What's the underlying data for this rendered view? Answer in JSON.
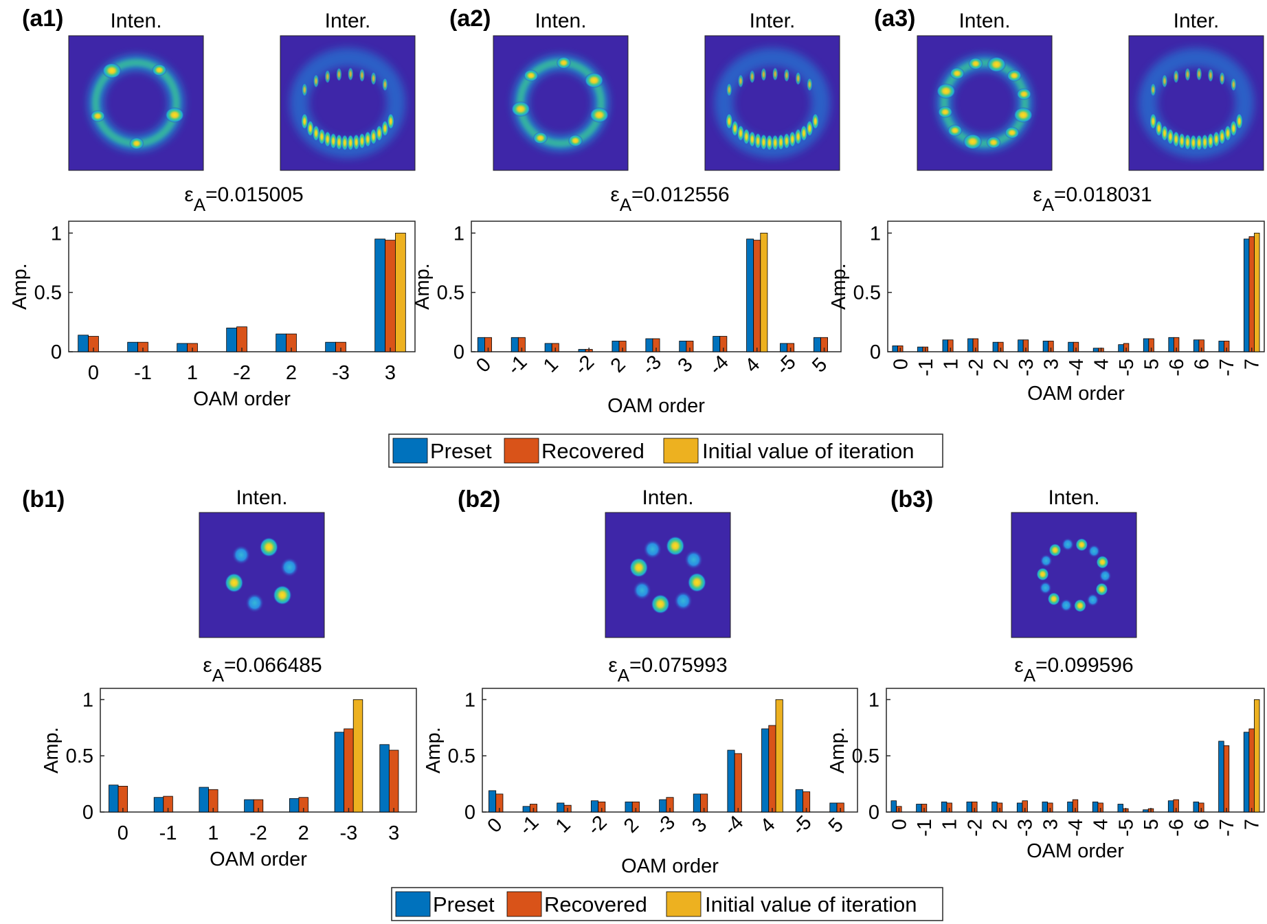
{
  "legend": [
    "Preset",
    "Recovered",
    "Initial value of iteration"
  ],
  "colors": {
    "preset": "#0072BD",
    "recovered": "#D95319",
    "initial": "#EDB120",
    "beam_background": "#3E26A8"
  },
  "panels": [
    {
      "label": "(a1)",
      "images": [
        {
          "title": "Inten.",
          "kind": "intensity",
          "lobes": 4,
          "pattern": "ring-3"
        },
        {
          "title": "Inter.",
          "kind": "interference"
        }
      ],
      "epsilon": {
        "symbol": "ε",
        "sub": "A",
        "value": "=0.015005"
      },
      "chart_data": {
        "type": "bar",
        "categories": [
          "0",
          "-1",
          "1",
          "-2",
          "2",
          "-3",
          "3"
        ],
        "series": [
          {
            "name": "Preset",
            "values": [
              0.14,
              0.08,
              0.07,
              0.2,
              0.15,
              0.08,
              0.95
            ]
          },
          {
            "name": "Recovered",
            "values": [
              0.13,
              0.08,
              0.07,
              0.21,
              0.15,
              0.08,
              0.94
            ]
          },
          {
            "name": "Initial value of iteration",
            "values": [
              0,
              0,
              0,
              0,
              0,
              0,
              1.0
            ]
          }
        ],
        "xlabel": "OAM order",
        "ylabel": "Amp.",
        "ylim": [
          0,
          1.1
        ],
        "yticks": [
          "0",
          "0.5",
          "1"
        ],
        "rotated_ticks": false
      }
    },
    {
      "label": "(a2)",
      "images": [
        {
          "title": "Inten.",
          "kind": "intensity",
          "pattern": "ring-4"
        },
        {
          "title": "Inter.",
          "kind": "interference"
        }
      ],
      "epsilon": {
        "symbol": "ε",
        "sub": "A",
        "value": "=0.012556"
      },
      "chart_data": {
        "type": "bar",
        "categories": [
          "0",
          "-1",
          "1",
          "-2",
          "2",
          "-3",
          "3",
          "-4",
          "4",
          "-5",
          "5"
        ],
        "series": [
          {
            "name": "Preset",
            "values": [
              0.12,
              0.12,
              0.07,
              0.02,
              0.09,
              0.11,
              0.09,
              0.13,
              0.95,
              0.07,
              0.12
            ]
          },
          {
            "name": "Recovered",
            "values": [
              0.12,
              0.12,
              0.07,
              0.02,
              0.09,
              0.11,
              0.09,
              0.13,
              0.94,
              0.07,
              0.12
            ]
          },
          {
            "name": "Initial value of iteration",
            "values": [
              0,
              0,
              0,
              0,
              0,
              0,
              0,
              0,
              1.0,
              0,
              0
            ]
          }
        ],
        "xlabel": "OAM order",
        "ylabel": "Amp.",
        "ylim": [
          0,
          1.1
        ],
        "yticks": [
          "0",
          "0.5",
          "1"
        ],
        "rotated_ticks": true
      }
    },
    {
      "label": "(a3)",
      "images": [
        {
          "title": "Inten.",
          "kind": "intensity",
          "pattern": "ring-7"
        },
        {
          "title": "Inter.",
          "kind": "interference"
        }
      ],
      "epsilon": {
        "symbol": "ε",
        "sub": "A",
        "value": "=0.018031"
      },
      "chart_data": {
        "type": "bar",
        "categories": [
          "0",
          "-1",
          "1",
          "-2",
          "2",
          "-3",
          "3",
          "-4",
          "4",
          "-5",
          "5",
          "-6",
          "6",
          "-7",
          "7"
        ],
        "series": [
          {
            "name": "Preset",
            "values": [
              0.05,
              0.04,
              0.1,
              0.11,
              0.08,
              0.1,
              0.09,
              0.08,
              0.03,
              0.06,
              0.11,
              0.12,
              0.1,
              0.09,
              0.95
            ]
          },
          {
            "name": "Recovered",
            "values": [
              0.05,
              0.04,
              0.1,
              0.11,
              0.08,
              0.1,
              0.09,
              0.08,
              0.03,
              0.07,
              0.11,
              0.12,
              0.1,
              0.09,
              0.97
            ]
          },
          {
            "name": "Initial value of iteration",
            "values": [
              0,
              0,
              0,
              0,
              0,
              0,
              0,
              0,
              0,
              0,
              0,
              0,
              0,
              0,
              1.0
            ]
          }
        ],
        "xlabel": "OAM order",
        "ylabel": "Amp.",
        "ylim": [
          0,
          1.1
        ],
        "yticks": [
          "0",
          "0.5",
          "1"
        ],
        "rotated_ticks": "vertical"
      }
    },
    {
      "label": "(b1)",
      "images": [
        {
          "title": "Inten.",
          "kind": "intensity",
          "pattern": "petals-6"
        }
      ],
      "epsilon": {
        "symbol": "ε",
        "sub": "A",
        "value": "=0.066485"
      },
      "chart_data": {
        "type": "bar",
        "categories": [
          "0",
          "-1",
          "1",
          "-2",
          "2",
          "-3",
          "3"
        ],
        "series": [
          {
            "name": "Preset",
            "values": [
              0.24,
              0.13,
              0.22,
              0.11,
              0.12,
              0.71,
              0.6
            ]
          },
          {
            "name": "Recovered",
            "values": [
              0.23,
              0.14,
              0.2,
              0.11,
              0.13,
              0.74,
              0.55
            ]
          },
          {
            "name": "Initial value of iteration",
            "values": [
              0,
              0,
              0,
              0,
              0,
              1.0,
              0
            ]
          }
        ],
        "xlabel": "OAM order",
        "ylabel": "Amp.",
        "ylim": [
          0,
          1.1
        ],
        "yticks": [
          "0",
          "0.5",
          "1"
        ],
        "rotated_ticks": false
      }
    },
    {
      "label": "(b2)",
      "images": [
        {
          "title": "Inten.",
          "kind": "intensity",
          "pattern": "petals-8"
        }
      ],
      "epsilon": {
        "symbol": "ε",
        "sub": "A",
        "value": "=0.075993"
      },
      "chart_data": {
        "type": "bar",
        "categories": [
          "0",
          "-1",
          "1",
          "-2",
          "2",
          "-3",
          "3",
          "-4",
          "4",
          "-5",
          "5"
        ],
        "series": [
          {
            "name": "Preset",
            "values": [
              0.19,
              0.05,
              0.08,
              0.1,
              0.09,
              0.11,
              0.16,
              0.55,
              0.74,
              0.2,
              0.08
            ]
          },
          {
            "name": "Recovered",
            "values": [
              0.16,
              0.07,
              0.06,
              0.09,
              0.09,
              0.13,
              0.16,
              0.52,
              0.77,
              0.18,
              0.08
            ]
          },
          {
            "name": "Initial value of iteration",
            "values": [
              0,
              0,
              0,
              0,
              0,
              0,
              0,
              0,
              1.0,
              0,
              0
            ]
          }
        ],
        "xlabel": "OAM order",
        "ylabel": "Amp.",
        "ylim": [
          0,
          1.1
        ],
        "yticks": [
          "0",
          "0.5",
          "1"
        ],
        "rotated_ticks": true
      }
    },
    {
      "label": "(b3)",
      "images": [
        {
          "title": "Inten.",
          "kind": "intensity",
          "pattern": "petals-14"
        }
      ],
      "epsilon": {
        "symbol": "ε",
        "sub": "A",
        "value": "=0.099596"
      },
      "chart_data": {
        "type": "bar",
        "categories": [
          "0",
          "-1",
          "1",
          "-2",
          "2",
          "-3",
          "3",
          "-4",
          "4",
          "-5",
          "5",
          "-6",
          "6",
          "-7",
          "7"
        ],
        "series": [
          {
            "name": "Preset",
            "values": [
              0.1,
              0.07,
              0.09,
              0.09,
              0.09,
              0.08,
              0.09,
              0.09,
              0.09,
              0.07,
              0.02,
              0.1,
              0.09,
              0.63,
              0.71
            ]
          },
          {
            "name": "Recovered",
            "values": [
              0.05,
              0.07,
              0.08,
              0.09,
              0.08,
              0.1,
              0.08,
              0.11,
              0.08,
              0.03,
              0.03,
              0.11,
              0.08,
              0.59,
              0.74
            ]
          },
          {
            "name": "Initial value of iteration",
            "values": [
              0,
              0,
              0,
              0,
              0,
              0,
              0,
              0,
              0,
              0,
              0,
              0,
              0,
              0,
              1.0
            ]
          }
        ],
        "xlabel": "OAM order",
        "ylabel": "Amp.",
        "ylim": [
          0,
          1.1
        ],
        "yticks": [
          "0",
          "0.5",
          "1"
        ],
        "rotated_ticks": "vertical"
      }
    }
  ]
}
